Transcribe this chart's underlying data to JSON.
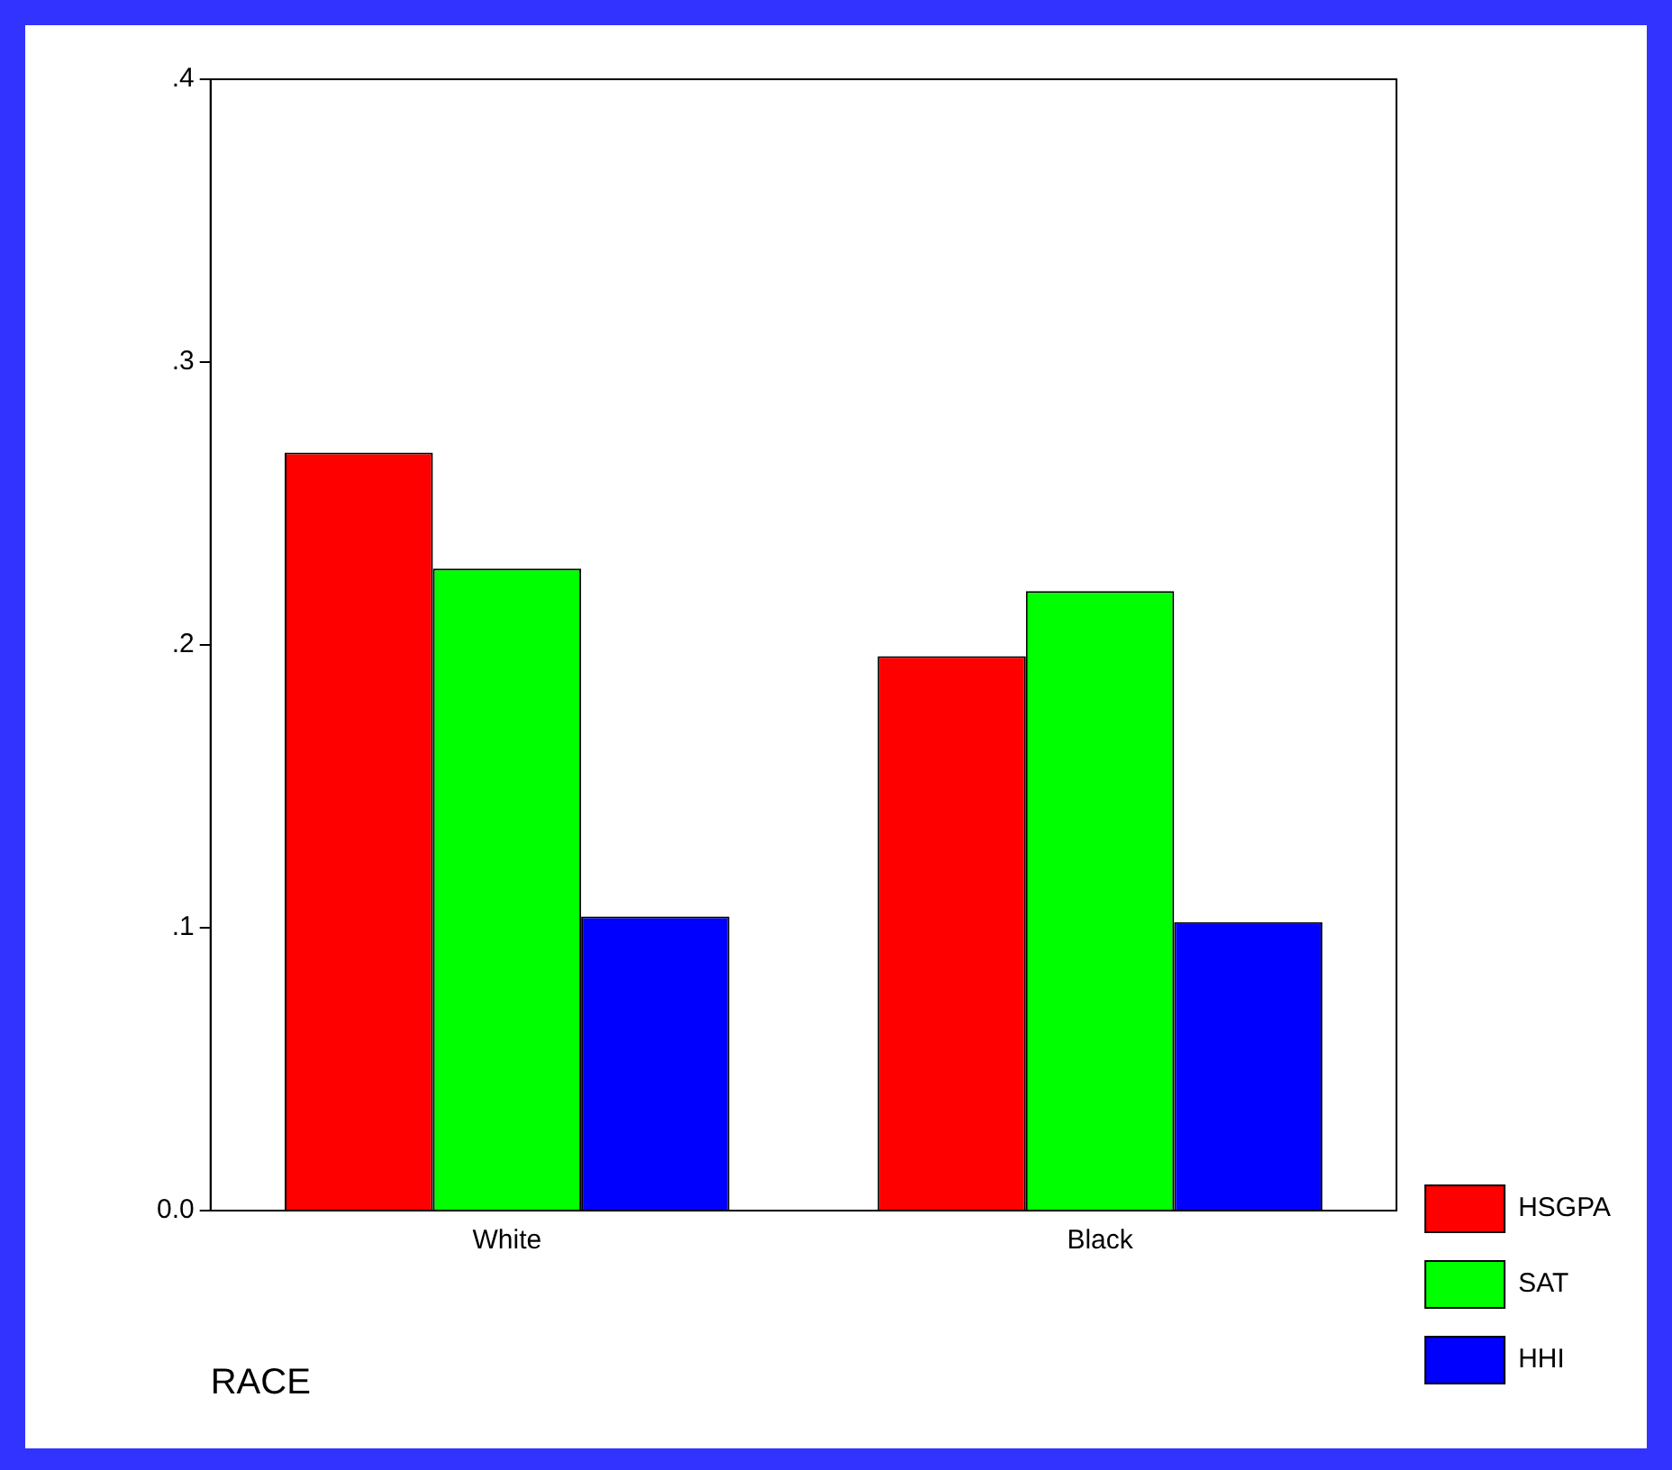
{
  "chart_data": {
    "type": "bar",
    "xlabel": "RACE",
    "categories": [
      "White",
      "Black"
    ],
    "series": [
      {
        "name": "HSGPA",
        "color": "#ff0000",
        "values": [
          0.268,
          0.196
        ]
      },
      {
        "name": "SAT",
        "color": "#00ff00",
        "values": [
          0.227,
          0.219
        ]
      },
      {
        "name": "HHI",
        "color": "#0000ff",
        "values": [
          0.104,
          0.102
        ]
      }
    ],
    "ylim": [
      0,
      0.4
    ],
    "yticks": [
      {
        "value": 0,
        "label": "0.0"
      },
      {
        "value": 0.1,
        "label": ".1"
      },
      {
        "value": 0.2,
        "label": ".2"
      },
      {
        "value": 0.3,
        "label": ".3"
      },
      {
        "value": 0.4,
        "label": ".4"
      }
    ],
    "grid": false,
    "legend": "bottom right"
  }
}
